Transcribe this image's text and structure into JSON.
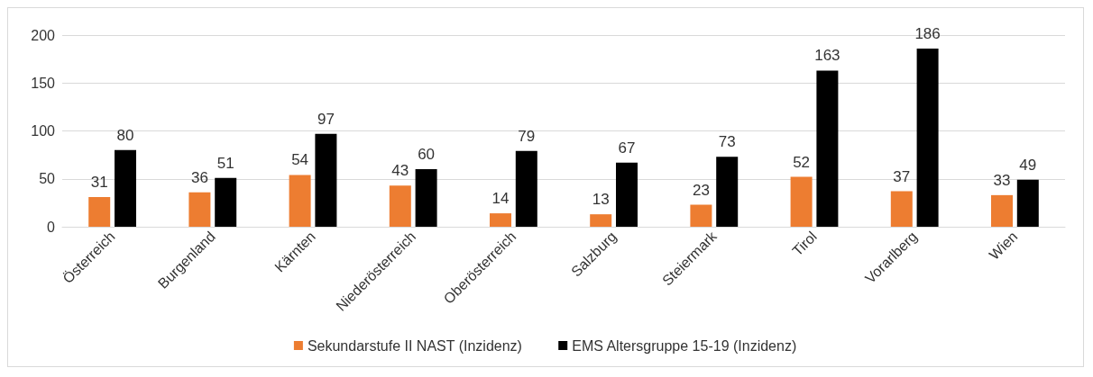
{
  "chart_data": {
    "type": "bar",
    "categories": [
      "Österreich",
      "Burgenland",
      "Kärnten",
      "Niederösterreich",
      "Oberösterreich",
      "Salzburg",
      "Steiermark",
      "Tirol",
      "Vorarlberg",
      "Wien"
    ],
    "series": [
      {
        "name": "Sekundarstufe II NAST (Inzidenz)",
        "color": "#ed7d31",
        "values": [
          31,
          36,
          54,
          43,
          14,
          13,
          23,
          52,
          37,
          33
        ]
      },
      {
        "name": "EMS Altersgruppe 15-19 (Inzidenz)",
        "color": "#000000",
        "values": [
          80,
          51,
          97,
          60,
          79,
          67,
          73,
          163,
          186,
          49
        ]
      }
    ],
    "ylim": [
      0,
      200
    ],
    "yticks": [
      0,
      50,
      100,
      150,
      200
    ],
    "grid": "y",
    "legend": "bottom",
    "data_labels": true
  }
}
